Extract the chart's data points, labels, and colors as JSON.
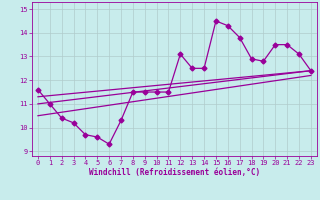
{
  "xlabel": "Windchill (Refroidissement éolien,°C)",
  "bg_color": "#c8ecec",
  "grid_color": "#b0cccc",
  "line_color": "#990099",
  "xlim": [
    -0.5,
    23.5
  ],
  "ylim": [
    8.8,
    15.3
  ],
  "xticks": [
    0,
    1,
    2,
    3,
    4,
    5,
    6,
    7,
    8,
    9,
    10,
    11,
    12,
    13,
    14,
    15,
    16,
    17,
    18,
    19,
    20,
    21,
    22,
    23
  ],
  "yticks": [
    9,
    10,
    11,
    12,
    13,
    14,
    15
  ],
  "series1_x": [
    0,
    1,
    2,
    3,
    4,
    5,
    6,
    7,
    8,
    9,
    10,
    11,
    12,
    13,
    14,
    15,
    16,
    17,
    18,
    19,
    20,
    21,
    22,
    23
  ],
  "series1_y": [
    11.6,
    11.0,
    10.4,
    10.2,
    9.7,
    9.6,
    9.3,
    10.3,
    11.5,
    11.5,
    11.5,
    11.5,
    13.1,
    12.5,
    12.5,
    14.5,
    14.3,
    13.8,
    12.9,
    12.8,
    13.5,
    13.5,
    13.1,
    12.4
  ],
  "series2_x": [
    0,
    23
  ],
  "series2_y": [
    10.5,
    12.2
  ],
  "series3_x": [
    0,
    23
  ],
  "series3_y": [
    11.0,
    12.4
  ],
  "series4_x": [
    0,
    23
  ],
  "series4_y": [
    11.3,
    12.4
  ],
  "marker": "D",
  "markersize": 2.5,
  "linewidth": 0.9,
  "tick_fontsize": 5.0,
  "xlabel_fontsize": 5.5
}
